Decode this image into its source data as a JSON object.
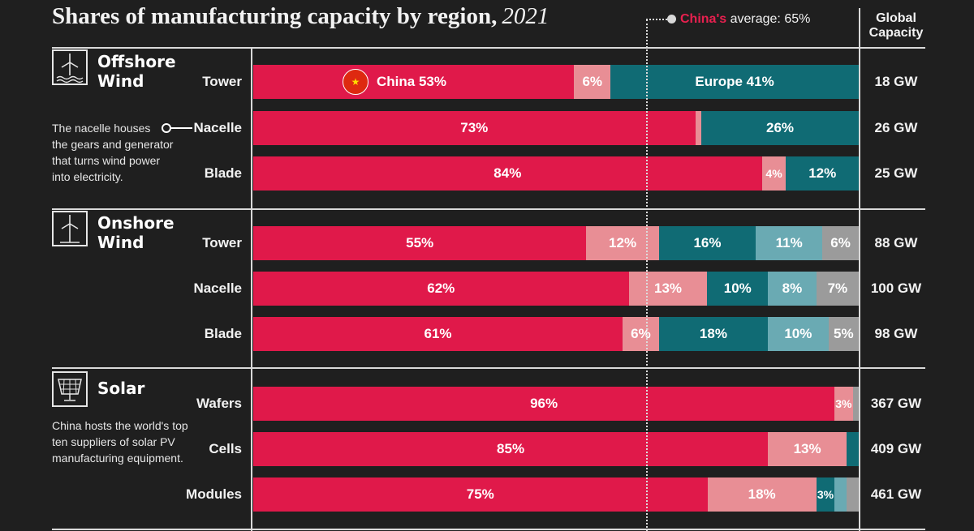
{
  "header": {
    "title": "Shares of manufacturing capacity by region,",
    "year": "2021",
    "avg_china": "China's",
    "avg_text": "average: 65%",
    "global_capacity_line1": "Global",
    "global_capacity_line2": "Capacity"
  },
  "sections": {
    "offshore": {
      "line1": "Offshore",
      "line2": "Wind",
      "note": [
        "The nacelle houses",
        "the gears and generator",
        "that turns wind power",
        "into electricity."
      ]
    },
    "onshore": {
      "line1": "Onshore",
      "line2": "Wind"
    },
    "solar": {
      "line1": "Solar",
      "note": [
        "China hosts the world's top",
        "ten suppliers of solar PV",
        "manufacturing equipment."
      ]
    }
  },
  "colors": {
    "china": "#e0194a",
    "china_light": "#e88e95",
    "europe": "#106b74",
    "teal_light": "#6aaab3",
    "gray": "#9b9b9b"
  },
  "chart_data": {
    "type": "bar",
    "stacked": true,
    "orientation": "horizontal",
    "china_average_percent": 65,
    "rows": [
      {
        "section": "offshore",
        "label": "Tower",
        "capacity": "18 GW",
        "segments": [
          {
            "label": "China 53%",
            "value": 53,
            "color": "china",
            "flag": true
          },
          {
            "label": "6%",
            "value": 6,
            "color": "china_light"
          },
          {
            "label": "Europe 41%",
            "value": 41,
            "color": "europe"
          }
        ]
      },
      {
        "section": "offshore",
        "label": "Nacelle",
        "capacity": "26 GW",
        "segments": [
          {
            "label": "73%",
            "value": 73,
            "color": "china"
          },
          {
            "label": "",
            "value": 1,
            "color": "china_light"
          },
          {
            "label": "26%",
            "value": 26,
            "color": "europe"
          }
        ]
      },
      {
        "section": "offshore",
        "label": "Blade",
        "capacity": "25 GW",
        "segments": [
          {
            "label": "84%",
            "value": 84,
            "color": "china"
          },
          {
            "label": "4%",
            "value": 4,
            "color": "china_light"
          },
          {
            "label": "12%",
            "value": 12,
            "color": "europe"
          }
        ]
      },
      {
        "section": "onshore",
        "label": "Tower",
        "capacity": "88 GW",
        "segments": [
          {
            "label": "55%",
            "value": 55,
            "color": "china"
          },
          {
            "label": "12%",
            "value": 12,
            "color": "china_light"
          },
          {
            "label": "16%",
            "value": 16,
            "color": "europe"
          },
          {
            "label": "11%",
            "value": 11,
            "color": "teal_light"
          },
          {
            "label": "6%",
            "value": 6,
            "color": "gray"
          }
        ]
      },
      {
        "section": "onshore",
        "label": "Nacelle",
        "capacity": "100 GW",
        "segments": [
          {
            "label": "62%",
            "value": 62,
            "color": "china"
          },
          {
            "label": "13%",
            "value": 13,
            "color": "china_light"
          },
          {
            "label": "10%",
            "value": 10,
            "color": "europe"
          },
          {
            "label": "8%",
            "value": 8,
            "color": "teal_light"
          },
          {
            "label": "7%",
            "value": 7,
            "color": "gray"
          }
        ]
      },
      {
        "section": "onshore",
        "label": "Blade",
        "capacity": "98 GW",
        "segments": [
          {
            "label": "61%",
            "value": 61,
            "color": "china"
          },
          {
            "label": "6%",
            "value": 6,
            "color": "china_light"
          },
          {
            "label": "18%",
            "value": 18,
            "color": "europe"
          },
          {
            "label": "10%",
            "value": 10,
            "color": "teal_light"
          },
          {
            "label": "5%",
            "value": 5,
            "color": "gray"
          }
        ]
      },
      {
        "section": "solar",
        "label": "Wafers",
        "capacity": "367 GW",
        "segments": [
          {
            "label": "96%",
            "value": 96,
            "color": "china"
          },
          {
            "label": "3%",
            "value": 3,
            "color": "china_light"
          },
          {
            "label": "",
            "value": 1,
            "color": "gray"
          }
        ]
      },
      {
        "section": "solar",
        "label": "Cells",
        "capacity": "409 GW",
        "segments": [
          {
            "label": "85%",
            "value": 85,
            "color": "china"
          },
          {
            "label": "13%",
            "value": 13,
            "color": "china_light"
          },
          {
            "label": "",
            "value": 2,
            "color": "europe"
          }
        ]
      },
      {
        "section": "solar",
        "label": "Modules",
        "capacity": "461 GW",
        "segments": [
          {
            "label": "75%",
            "value": 75,
            "color": "china"
          },
          {
            "label": "18%",
            "value": 18,
            "color": "china_light"
          },
          {
            "label": "3%",
            "value": 3,
            "color": "europe"
          },
          {
            "label": "",
            "value": 2,
            "color": "teal_light"
          },
          {
            "label": "",
            "value": 2,
            "color": "gray"
          }
        ]
      }
    ]
  }
}
